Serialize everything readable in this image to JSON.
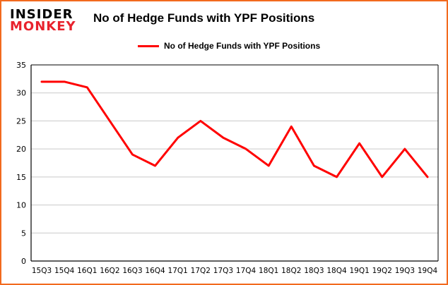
{
  "brand": {
    "line1": "INSIDER",
    "line2": "MONKEY",
    "line1_color": "#000000",
    "line2_color": "#e8222d"
  },
  "title": "No of Hedge Funds with YPF Positions",
  "legend": {
    "label": "No of Hedge Funds with YPF Positions",
    "color": "#ff0000"
  },
  "frame_color": "#f26a1e",
  "chart_data": {
    "type": "line",
    "title": "No of Hedge Funds with YPF Positions",
    "categories": [
      "15Q3",
      "15Q4",
      "16Q1",
      "16Q2",
      "16Q3",
      "16Q4",
      "17Q1",
      "17Q2",
      "17Q3",
      "17Q4",
      "18Q1",
      "18Q2",
      "18Q3",
      "18Q4",
      "19Q1",
      "19Q2",
      "19Q3",
      "19Q4"
    ],
    "values": [
      32,
      32,
      31,
      25,
      19,
      17,
      22,
      25,
      22,
      20,
      17,
      24,
      17,
      15,
      21,
      15,
      20,
      15
    ],
    "series_name": "No of Hedge Funds with YPF Positions",
    "series_color": "#ff0000",
    "xlabel": "",
    "ylabel": "",
    "ylim": [
      0,
      35
    ],
    "yticks": [
      0,
      5,
      10,
      15,
      20,
      25,
      30,
      35
    ],
    "grid": true,
    "grid_color": "#c9c9c9",
    "legend_position": "top"
  }
}
